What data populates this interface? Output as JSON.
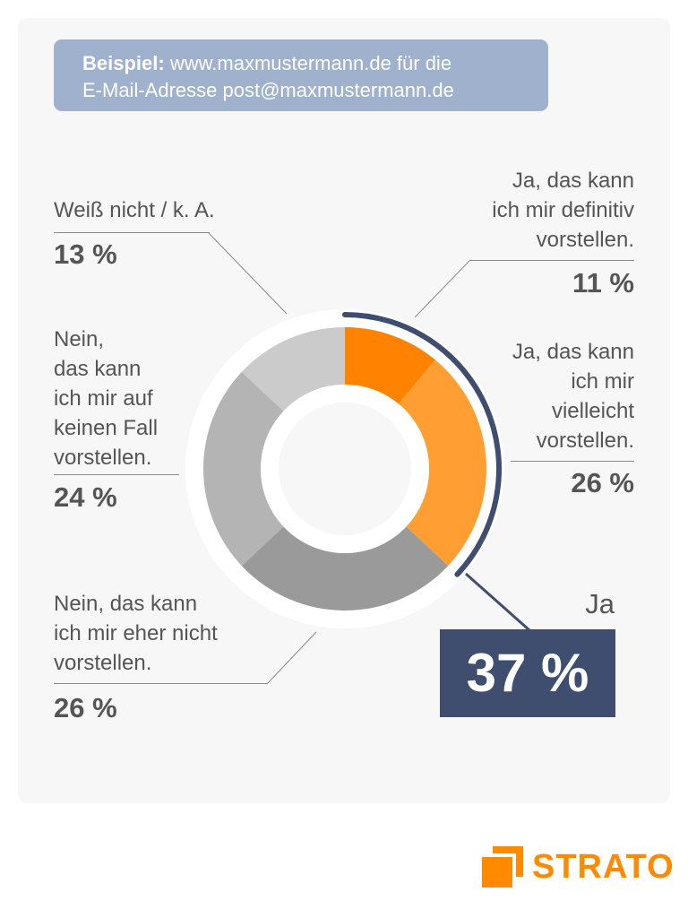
{
  "example": {
    "bold": "Beispiel:",
    "line1": "www.maxmustermann.de für die",
    "line2": "E-Mail-Adresse post@maxmustermann.de"
  },
  "chart_data": {
    "type": "pie",
    "categories": [
      "Ja, das kann ich mir definitiv vorstellen.",
      "Ja, das kann ich mir vielleicht vorstellen.",
      "Nein, das kann ich mir eher nicht vorstellen.",
      "Nein, das kann ich mir auf keinen Fall vorstellen.",
      "Weiß nicht / k. A."
    ],
    "values": [
      11,
      26,
      26,
      24,
      13
    ],
    "value_labels": [
      "11 %",
      "26 %",
      "26 %",
      "24 %",
      "13 %"
    ],
    "colors": [
      "#ff8200",
      "#ff9f33",
      "#9a9a9a",
      "#b4b4b4",
      "#cbcbcb"
    ],
    "highlight": {
      "label": "Ja",
      "value": 37,
      "value_label": "37 %",
      "color": "#3f4d6e"
    }
  },
  "labels": {
    "definitiv": [
      "Ja, das kann",
      "ich mir definitiv",
      "vorstellen."
    ],
    "vielleicht": [
      "Ja, das kann",
      "ich mir",
      "vielleicht",
      "vorstellen."
    ],
    "eher_nicht": [
      "Nein, das kann",
      "ich mir eher nicht",
      "vorstellen."
    ],
    "keinen_fall": [
      "Nein,",
      "das kann",
      "ich mir auf",
      "keinen Fall",
      "vorstellen."
    ],
    "weiss_nicht": [
      "Weiß nicht / k. A."
    ]
  },
  "brand": {
    "name": "STRATO",
    "color": "#ff8a00"
  }
}
